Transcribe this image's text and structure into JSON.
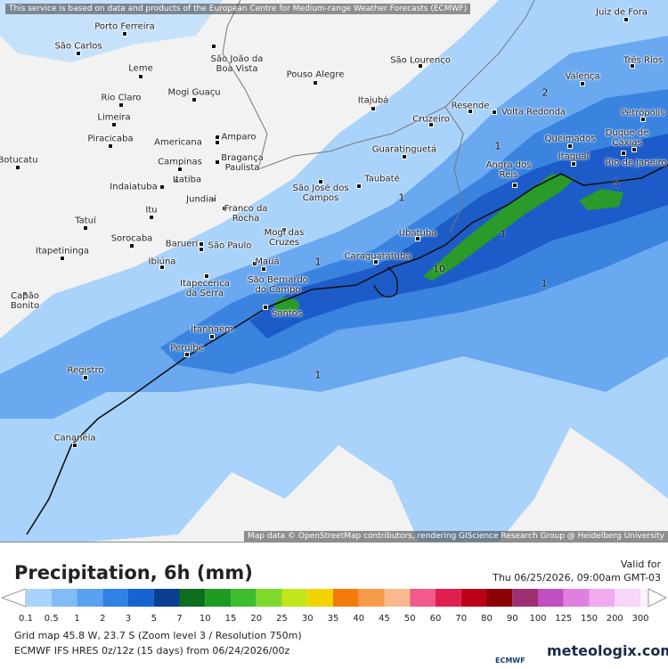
{
  "header": {
    "notice": "This service is based on data and products of the European Centre for Medium-range Weather Forecasts (ECMWF)"
  },
  "map": {
    "attribution": "Map data © OpenStreetMap contributors, rendering GIScience Research Group @ Heidelberg University",
    "cities": [
      "Porto Ferreira",
      "Juiz de Fora",
      "São Carlos",
      "São João da Boa Vista",
      "Leme",
      "Pouso Alegre",
      "São Lourenço",
      "Três Rios",
      "Mogi Guaçu",
      "Rio Claro",
      "Itajubá",
      "Valença",
      "Resende",
      "Volta Redonda",
      "Petrópolis",
      "Limeira",
      "Cruzeiro",
      "Amparo",
      "Piracicaba",
      "Americana",
      "Queimados",
      "Duque de Caxias",
      "Guaratinguetá",
      "Campinas",
      "Bragança Paulista",
      "Itaguaí",
      "Rio de Janeiro",
      "Botucatu",
      "Itatiba",
      "Indaiatuba",
      "Taubaté",
      "Angra dos Reis",
      "São José dos Campos",
      "Jundiaí",
      "Franco da Rocha",
      "Itu",
      "Tatuí",
      "Ubatuba",
      "Mogi das Cruzes",
      "Sorocaba",
      "Barueri",
      "São Paulo",
      "Itapetininga",
      "Caraguatatuba",
      "Ibiúna",
      "Mauá",
      "Itapecerica da Serra",
      "São Bernardo do Campo",
      "Capão Bonito",
      "Santos",
      "Itanhaém",
      "Peruíbe",
      "Registro",
      "Cananéia"
    ],
    "contour_labels": [
      "2",
      "1",
      "1",
      "5",
      "1",
      "10",
      "1",
      "1",
      "1"
    ]
  },
  "legend": {
    "title": "Precipitation, 6h (mm)",
    "valid_label": "Valid for",
    "valid_time": "Thu 06/25/2026, 09:00am GMT-03",
    "scale": [
      {
        "label": "0.1",
        "color": "#a9d3fb"
      },
      {
        "label": "0.5",
        "color": "#82bcf5"
      },
      {
        "label": "1",
        "color": "#5aa2ef"
      },
      {
        "label": "2",
        "color": "#2f82e3"
      },
      {
        "label": "3",
        "color": "#1563cf"
      },
      {
        "label": "5",
        "color": "#0a3f94"
      },
      {
        "label": "7",
        "color": "#0c6e1c"
      },
      {
        "label": "10",
        "color": "#1f9a22"
      },
      {
        "label": "15",
        "color": "#3cbe2f"
      },
      {
        "label": "20",
        "color": "#7fd92a"
      },
      {
        "label": "25",
        "color": "#c2e61c"
      },
      {
        "label": "30",
        "color": "#f2d300"
      },
      {
        "label": "35",
        "color": "#f47a0c"
      },
      {
        "label": "40",
        "color": "#f79a48"
      },
      {
        "label": "45",
        "color": "#f9b98d"
      },
      {
        "label": "50",
        "color": "#f25a8c"
      },
      {
        "label": "60",
        "color": "#df1f50"
      },
      {
        "label": "70",
        "color": "#bd0019"
      },
      {
        "label": "80",
        "color": "#8a0000"
      },
      {
        "label": "90",
        "color": "#9e2f72"
      },
      {
        "label": "100",
        "color": "#c04fc2"
      },
      {
        "label": "125",
        "color": "#df80e0"
      },
      {
        "label": "150",
        "color": "#efaaf0"
      },
      {
        "label": "200",
        "color": "#f7d6f8"
      },
      {
        "label": "300",
        "color": "#fff0ff"
      }
    ]
  },
  "footer": {
    "grid": "Grid map 45.8 W, 23.7 S (Zoom level 3 / Resolution 750m)",
    "model": "ECMWF IFS HRES 0z/12z (15 days) from 06/24/2026/00z",
    "ecmwf": "ECMWF",
    "brand": "meteologix.com"
  }
}
